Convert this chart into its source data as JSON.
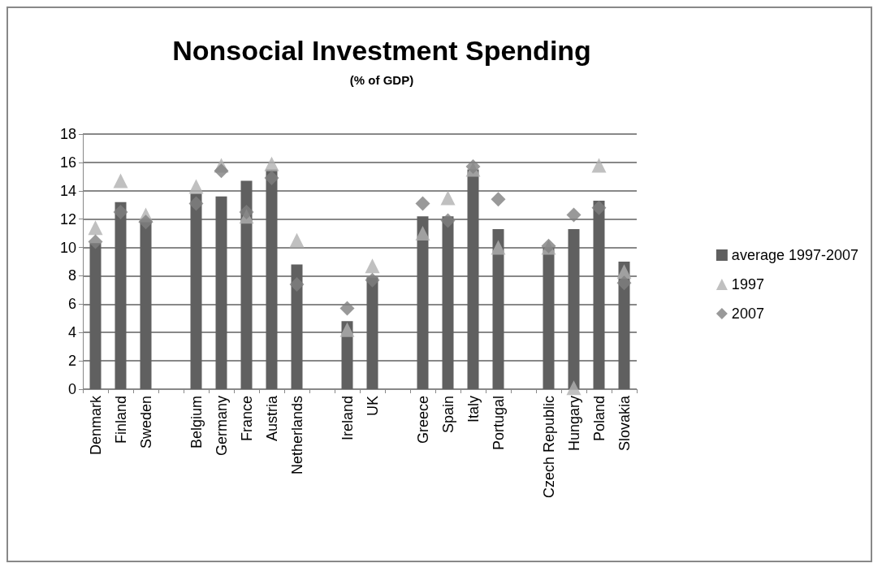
{
  "chart_data": {
    "type": "bar",
    "title": "Nonsocial Investment Spending",
    "subtitle": "(% of GDP)",
    "categories": [
      "Denmark",
      "Finland",
      "Sweden",
      null,
      "Belgium",
      "Germany",
      "France",
      "Austria",
      "Netherlands",
      null,
      "Ireland",
      "UK",
      null,
      "Greece",
      "Spain",
      "Italy",
      "Portugal",
      null,
      "Czech Republic",
      "Hungary",
      "Poland",
      "Slovakia"
    ],
    "series": [
      {
        "name": "average 1997-2007",
        "color": "#606060",
        "values": [
          10.3,
          13.2,
          12.0,
          null,
          13.8,
          13.6,
          14.7,
          15.5,
          8.8,
          null,
          4.8,
          7.9,
          null,
          12.2,
          12.2,
          15.5,
          11.3,
          null,
          10.0,
          11.3,
          13.3,
          9.0
        ]
      },
      {
        "name": "1997",
        "type": "scatter",
        "marker": "triangle",
        "color": "#b0b0b0",
        "values": [
          11.4,
          14.7,
          12.3,
          null,
          14.3,
          15.8,
          12.2,
          15.9,
          10.5,
          null,
          4.2,
          8.7,
          null,
          11.0,
          13.5,
          15.5,
          10.0,
          null,
          10.0,
          0.1,
          15.8,
          8.3
        ]
      },
      {
        "name": "2007",
        "type": "scatter",
        "marker": "diamond",
        "color": "#808080",
        "values": [
          10.4,
          12.5,
          11.8,
          null,
          13.1,
          15.4,
          12.5,
          14.9,
          7.4,
          null,
          5.7,
          7.7,
          null,
          13.1,
          11.9,
          15.7,
          13.4,
          null,
          10.1,
          12.3,
          12.8,
          7.5
        ]
      }
    ],
    "ylim": [
      0,
      18
    ],
    "yticks": [
      0,
      2,
      4,
      6,
      8,
      10,
      12,
      14,
      16,
      18
    ],
    "grid": "y",
    "legend": "right"
  }
}
